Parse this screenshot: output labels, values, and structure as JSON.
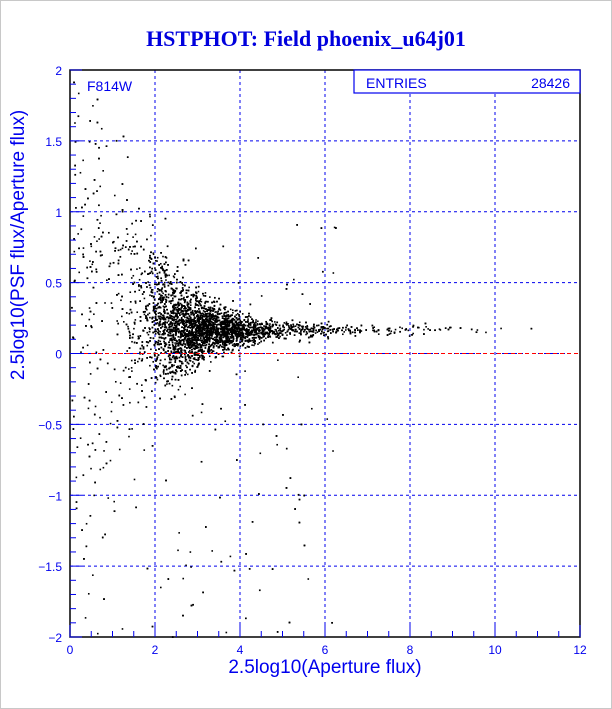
{
  "chart_data": {
    "type": "scatter",
    "title": "HSTPHOT: Field phoenix_u64j01",
    "xlabel": "2.5log10(Aperture flux)",
    "ylabel": "2.5log10(PSF flux/Aperture flux)",
    "xlim": [
      0,
      12
    ],
    "ylim": [
      -2,
      2
    ],
    "xticks": [
      "0",
      "2",
      "4",
      "6",
      "8",
      "10",
      "12"
    ],
    "yticks": [
      "-2",
      "-1.5",
      "-1",
      "-0.5",
      "0",
      "0.5",
      "1",
      "1.5",
      "2"
    ],
    "grid": true,
    "reference_line_y": 0,
    "annotation": "F814W",
    "stats_box": {
      "label": "ENTRIES",
      "value": "28426",
      "placement": "top-right"
    },
    "distribution_summary": {
      "core_center": [
        2.9,
        0.15
      ],
      "tail_y_at_bright_end": 0.18,
      "tail_x_max": 10.8
    },
    "colors": {
      "points": "#000000",
      "axes": "#0000ee",
      "grid": "#0000ee",
      "zero_line": "#ff0000",
      "title": "#0000dd"
    }
  }
}
